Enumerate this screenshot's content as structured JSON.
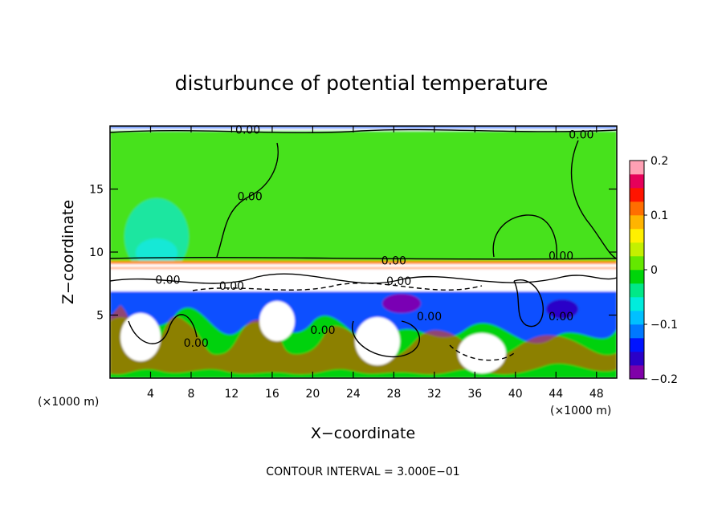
{
  "chart_data": {
    "type": "heatmap",
    "title": "disturbunce of potential temperature",
    "xlabel": "X−coordinate",
    "ylabel": "Z−coordinate",
    "x_unit": "(×1000 m)",
    "y_unit": "(×1000 m)",
    "xlim": [
      0,
      50
    ],
    "ylim": [
      0,
      20
    ],
    "x_ticks": [
      4,
      8,
      12,
      16,
      20,
      24,
      28,
      32,
      36,
      40,
      44,
      48
    ],
    "y_ticks": [
      5,
      10,
      15
    ],
    "colorbar": {
      "min": -0.2,
      "max": 0.2,
      "ticks": [
        {
          "value": 0.2,
          "label": "0.2"
        },
        {
          "value": 0.1,
          "label": "0.1"
        },
        {
          "value": 0,
          "label": "0"
        },
        {
          "value": -0.1,
          "label": "−0.1"
        },
        {
          "value": -0.2,
          "label": "−0.2"
        }
      ],
      "colors": [
        "#7f00a8",
        "#2a00c8",
        "#0014ff",
        "#0078ff",
        "#00c0ff",
        "#00ecdc",
        "#00e887",
        "#00d50a",
        "#64e800",
        "#c4f000",
        "#fff000",
        "#ffb400",
        "#ff6e00",
        "#ff1400",
        "#e6005a",
        "#ffa0b4"
      ]
    },
    "contour_labels": [
      {
        "x": 13.6,
        "z": 19.4,
        "text": "0.00"
      },
      {
        "x": 46.5,
        "z": 19.0,
        "text": "0.00"
      },
      {
        "x": 13.8,
        "z": 14.1,
        "text": "0.00"
      },
      {
        "x": 28.0,
        "z": 9.0,
        "text": "0.00"
      },
      {
        "x": 44.5,
        "z": 9.4,
        "text": "0.00"
      },
      {
        "x": 5.7,
        "z": 7.5,
        "text": "0.00"
      },
      {
        "x": 28.5,
        "z": 7.4,
        "text": "0.00"
      },
      {
        "x": 12.0,
        "z": 7.0,
        "text": "0.00"
      },
      {
        "x": 8.5,
        "z": 2.5,
        "text": "0.00"
      },
      {
        "x": 21.0,
        "z": 3.5,
        "text": "0.00"
      },
      {
        "x": 31.5,
        "z": 4.6,
        "text": "0.00"
      },
      {
        "x": 44.5,
        "z": 4.6,
        "text": "0.00"
      }
    ],
    "contour_interval_label": "CONTOUR INTERVAL = 3.000E−01",
    "grid": false,
    "legend": "right"
  }
}
